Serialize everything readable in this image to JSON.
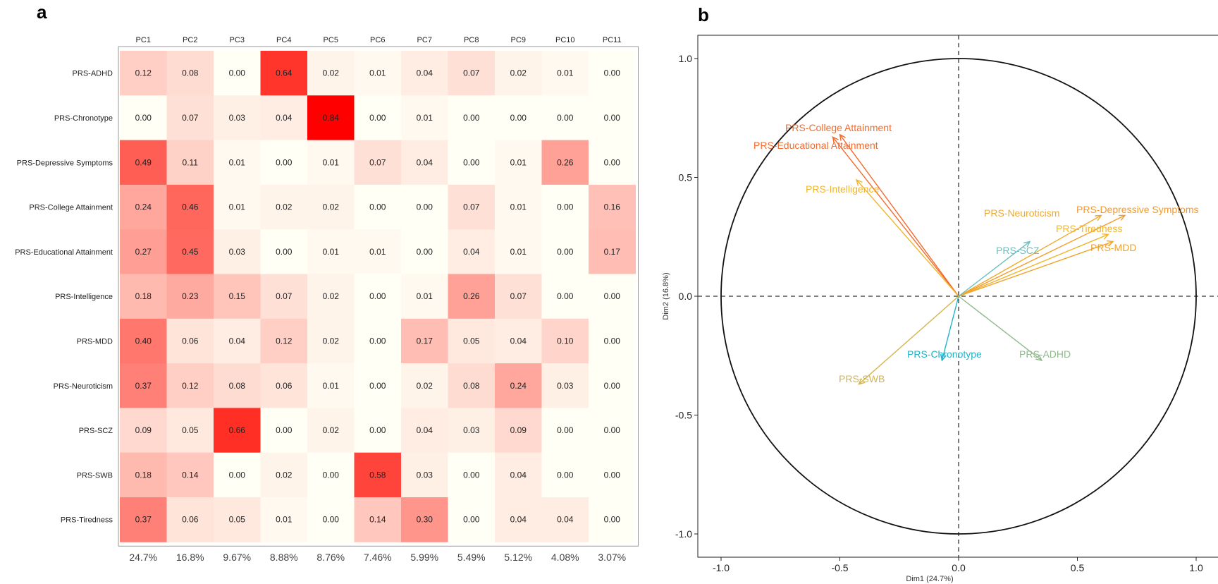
{
  "panels": {
    "a": "a",
    "b": "b"
  },
  "chart_data": [
    {
      "type": "heatmap",
      "columns": [
        "PC1",
        "PC2",
        "PC3",
        "PC4",
        "PC5",
        "PC6",
        "PC7",
        "PC8",
        "PC9",
        "PC10",
        "PC11"
      ],
      "rows": [
        "PRS-ADHD",
        "PRS-Chronotype",
        "PRS-Depressive Symptoms",
        "PRS-College Attainment",
        "PRS-Educational Attainment",
        "PRS-Intelligence",
        "PRS-MDD",
        "PRS-Neuroticism",
        "PRS-SCZ",
        "PRS-SWB",
        "PRS-Tiredness"
      ],
      "values": [
        [
          "0.12",
          "0.08",
          "0.00",
          "0.64",
          "0.02",
          "0.01",
          "0.04",
          "0.07",
          "0.02",
          "0.01",
          "0.00"
        ],
        [
          "0.00",
          "0.07",
          "0.03",
          "0.04",
          "0.84",
          "0.00",
          "0.01",
          "0.00",
          "0.00",
          "0.00",
          "0.00"
        ],
        [
          "0.49",
          "0.11",
          "0.01",
          "0.00",
          "0.01",
          "0.07",
          "0.04",
          "0.00",
          "0.01",
          "0.26",
          "0.00"
        ],
        [
          "0.24",
          "0.46",
          "0.01",
          "0.02",
          "0.02",
          "0.00",
          "0.00",
          "0.07",
          "0.01",
          "0.00",
          "0.16"
        ],
        [
          "0.27",
          "0.45",
          "0.03",
          "0.00",
          "0.01",
          "0.01",
          "0.00",
          "0.04",
          "0.01",
          "0.00",
          "0.17"
        ],
        [
          "0.18",
          "0.23",
          "0.15",
          "0.07",
          "0.02",
          "0.00",
          "0.01",
          "0.26",
          "0.07",
          "0.00",
          "0.00"
        ],
        [
          "0.40",
          "0.06",
          "0.04",
          "0.12",
          "0.02",
          "0.00",
          "0.17",
          "0.05",
          "0.04",
          "0.10",
          "0.00"
        ],
        [
          "0.37",
          "0.12",
          "0.08",
          "0.06",
          "0.01",
          "0.00",
          "0.02",
          "0.08",
          "0.24",
          "0.03",
          "0.00"
        ],
        [
          "0.09",
          "0.05",
          "0.66",
          "0.00",
          "0.02",
          "0.00",
          "0.04",
          "0.03",
          "0.09",
          "0.00",
          "0.00"
        ],
        [
          "0.18",
          "0.14",
          "0.00",
          "0.02",
          "0.00",
          "0.58",
          "0.03",
          "0.00",
          "0.04",
          "0.00",
          "0.00"
        ],
        [
          "0.37",
          "0.06",
          "0.05",
          "0.01",
          "0.00",
          "0.14",
          "0.30",
          "0.00",
          "0.04",
          "0.04",
          "0.00"
        ]
      ],
      "variance_explained": [
        "24.7%",
        "16.8%",
        "9.67%",
        "8.88%",
        "8.76%",
        "7.46%",
        "5.99%",
        "5.49%",
        "5.12%",
        "4.08%",
        "3.07%"
      ],
      "color_low": "#ffffff",
      "color_high": "#ff0000"
    },
    {
      "type": "scatter",
      "subtype": "pca-correlation-circle",
      "xlabel": "Dim1 (24.7%)",
      "ylabel": "Dim2 (16.8%)",
      "xlim": [
        -1.1,
        1.1
      ],
      "ylim": [
        -1.1,
        1.1
      ],
      "xticks": [
        "-1.0",
        "-0.5",
        "0.0",
        "0.5",
        "1.0"
      ],
      "yticks": [
        "-1.0",
        "-0.5",
        "0.0",
        "0.5",
        "1.0"
      ],
      "vectors": [
        {
          "name": "PRS-College Attainment",
          "x": -0.5,
          "y": 0.68,
          "color": "#f26b2d"
        },
        {
          "name": "PRS-Educational Attainment",
          "x": -0.53,
          "y": 0.67,
          "color": "#f26b2d"
        },
        {
          "name": "PRS-Intelligence",
          "x": -0.43,
          "y": 0.49,
          "color": "#f1b52c"
        },
        {
          "name": "PRS-Neuroticism",
          "x": 0.6,
          "y": 0.34,
          "color": "#f0a92a"
        },
        {
          "name": "PRS-Depressive Symptoms",
          "x": 0.7,
          "y": 0.34,
          "color": "#f59a2b"
        },
        {
          "name": "PRS-Tiredness",
          "x": 0.63,
          "y": 0.26,
          "color": "#f0b52c"
        },
        {
          "name": "PRS-MDD",
          "x": 0.65,
          "y": 0.23,
          "color": "#f2a22b"
        },
        {
          "name": "PRS-SCZ",
          "x": 0.3,
          "y": 0.23,
          "color": "#6bbfbf"
        },
        {
          "name": "PRS-Chronotype",
          "x": -0.07,
          "y": -0.27,
          "color": "#22b3c8"
        },
        {
          "name": "PRS-ADHD",
          "x": 0.35,
          "y": -0.27,
          "color": "#8fba8c"
        },
        {
          "name": "PRS-SWB",
          "x": -0.42,
          "y": -0.37,
          "color": "#d4b44a"
        }
      ]
    }
  ]
}
